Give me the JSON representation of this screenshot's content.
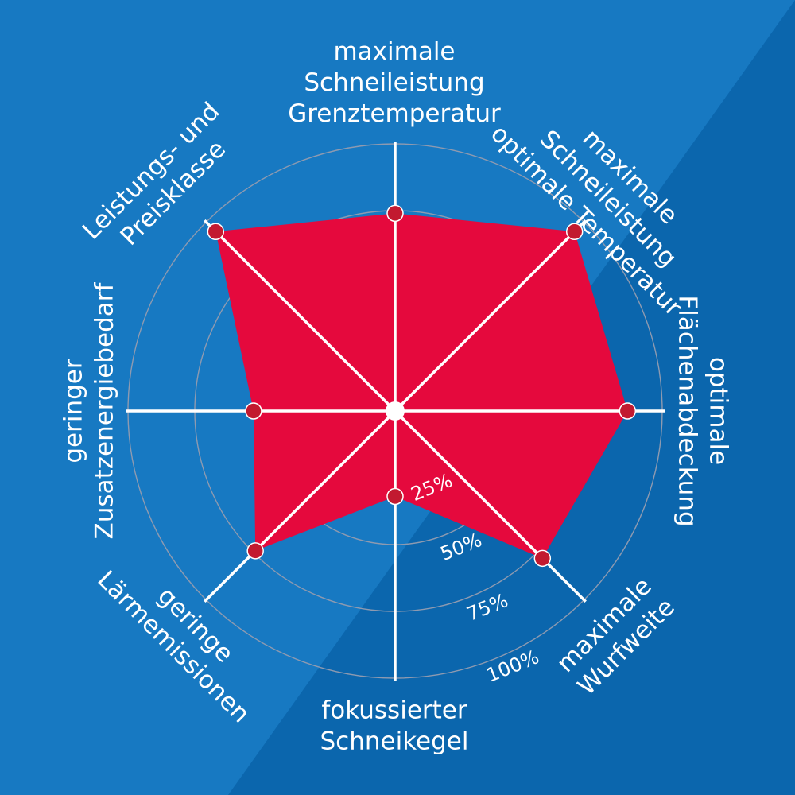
{
  "colors": {
    "background": "#1779c2",
    "background_dark": "#0b66ad",
    "area_fill": "#e5093d",
    "point_fill": "#c21a30",
    "axis_line": "#ffffff",
    "grid_ring": "#8e9ab0",
    "text": "#ffffff"
  },
  "chart_data": {
    "type": "radar",
    "title": "",
    "grid": true,
    "range": [
      0,
      100
    ],
    "ticks": [
      {
        "value": 25,
        "label": "25%"
      },
      {
        "value": 50,
        "label": "50%"
      },
      {
        "value": 75,
        "label": "75%"
      },
      {
        "value": 100,
        "label": "100%"
      }
    ],
    "axes": [
      {
        "lines": [
          "maximale",
          "Schneileistung",
          "Grenztemperatur"
        ]
      },
      {
        "lines": [
          "maximale",
          "Schneileistung",
          "optimale Temperatur"
        ]
      },
      {
        "lines": [
          "optimale",
          "Flächenabdeckung"
        ]
      },
      {
        "lines": [
          "maximale",
          "Wurfweite"
        ]
      },
      {
        "lines": [
          "fokussierter",
          "Schneikegel"
        ]
      },
      {
        "lines": [
          "geringe",
          "Lärmemissionen"
        ]
      },
      {
        "lines": [
          "geringer",
          "Zusatzenergiebedarf"
        ]
      },
      {
        "lines": [
          "Leistungs- und",
          "Preisklasse"
        ]
      }
    ],
    "series": [
      {
        "values": [
          74,
          95,
          87,
          78,
          32,
          74,
          53,
          95
        ]
      }
    ]
  }
}
